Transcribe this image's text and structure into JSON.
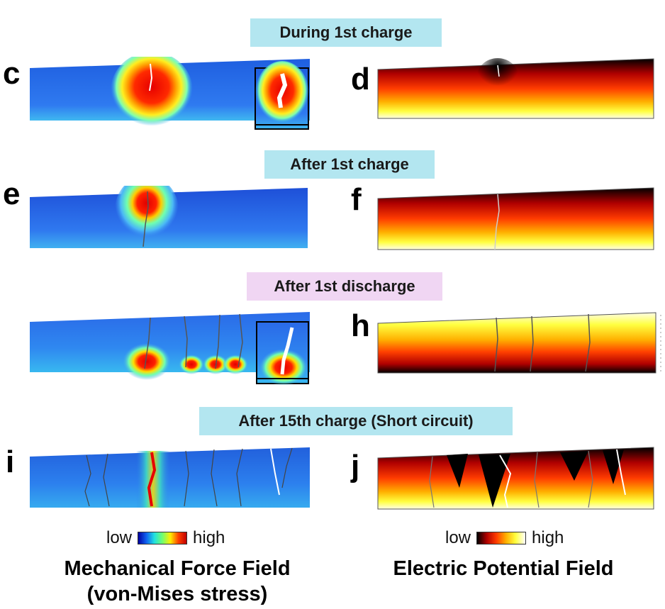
{
  "stages": [
    {
      "label": "During 1st charge",
      "color": "#b3e6f0"
    },
    {
      "label": "After 1st charge",
      "color": "#b3e6f0"
    },
    {
      "label": "After 1st discharge",
      "color": "#f0d6f3"
    },
    {
      "label": "After 15th charge (Short circuit)",
      "color": "#b3e6f0"
    }
  ],
  "panel_letters": {
    "c": "c",
    "d": "d",
    "e": "e",
    "f": "f",
    "h": "h",
    "i": "i",
    "j": "j"
  },
  "legend_left": {
    "low": "low",
    "high": "high",
    "colormap": "jet"
  },
  "legend_right": {
    "low": "low",
    "high": "high",
    "colormap": "hot"
  },
  "titles": {
    "left_line1": "Mechanical Force Field",
    "left_line2": "(von-Mises stress)",
    "right": "Electric Potential Field"
  }
}
